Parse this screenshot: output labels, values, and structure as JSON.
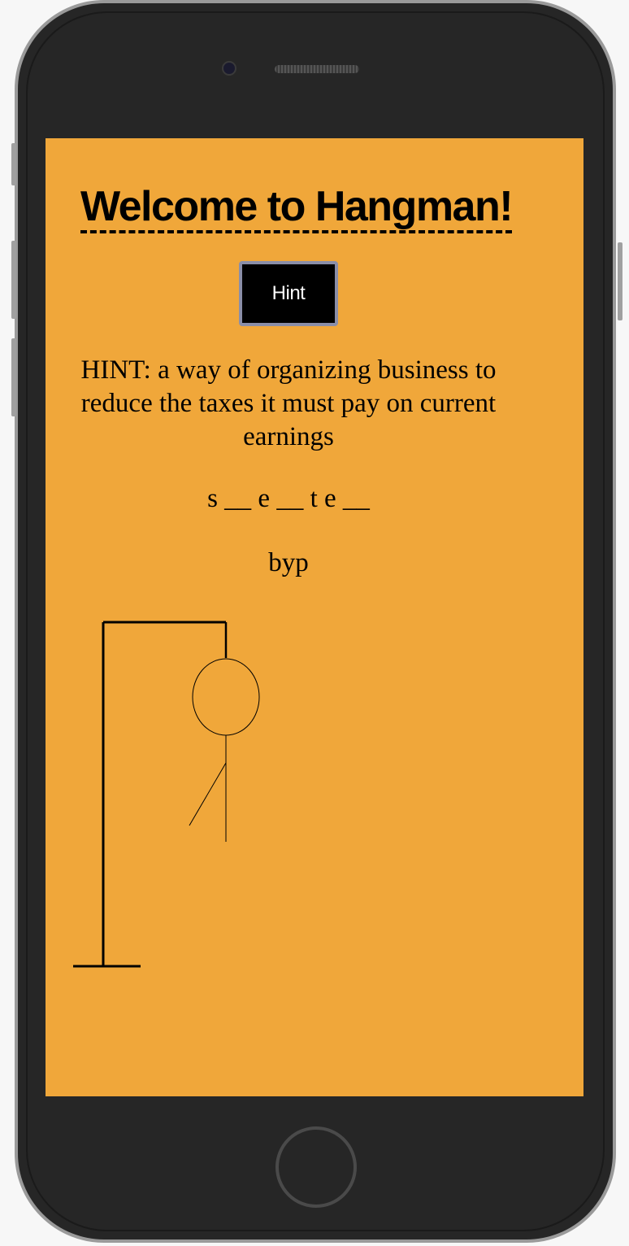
{
  "app": {
    "title": "Welcome to Hangman!",
    "hint_button_label": "Hint",
    "hint_text": "HINT: a way of organizing business to reduce the taxes it must pay on current earnings",
    "word_display": "s __ e __ t e __",
    "guessed_letters": "byp"
  },
  "colors": {
    "background": "#f0a73a",
    "button_bg": "#000000",
    "button_border": "#8a8ea8"
  },
  "hangman": {
    "parts_shown": [
      "head",
      "body",
      "left-arm"
    ]
  }
}
